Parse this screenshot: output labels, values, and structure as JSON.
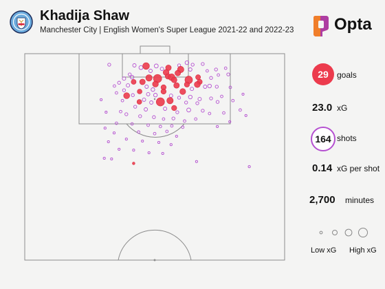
{
  "header": {
    "player_name": "Khadija Shaw",
    "subtitle": "Manchester City | English Women's Super League 2021-22 and 2022-23",
    "logo_text": "Opta",
    "badge_icon": "manchester-city-crest-icon"
  },
  "colors": {
    "goal": "#ec3b4d",
    "shot": "#b44fd0",
    "pitch_line": "#8c8c8c",
    "background": "#f4f4f3"
  },
  "stats": {
    "goals": {
      "value": "29",
      "label": "goals"
    },
    "xg": {
      "value": "23.0",
      "label": "xG"
    },
    "shots": {
      "value": "164",
      "label": "shots"
    },
    "xg_per_shot": {
      "value": "0.14",
      "label": "xG per shot"
    },
    "minutes": {
      "value": "2,700",
      "label": "minutes"
    }
  },
  "legend": {
    "low_label": "Low xG",
    "high_label": "High xG",
    "sizes_xg": [
      0.03,
      0.1,
      0.2,
      0.35
    ]
  },
  "chart_data": {
    "type": "scatter",
    "x_axis": "pitch width (0-100, left to right)",
    "y_axis": "distance from goal line (0-100 half pitch)",
    "xlim": [
      0,
      100
    ],
    "ylim": [
      0,
      100
    ],
    "grid": false,
    "goals": [
      {
        "x": 46.7,
        "y": 5.6,
        "xg": 0.2
      },
      {
        "x": 55.3,
        "y": 6.4,
        "xg": 0.14
      },
      {
        "x": 60.0,
        "y": 7.2,
        "xg": 0.18
      },
      {
        "x": 54.4,
        "y": 8.5,
        "xg": 0.15
      },
      {
        "x": 58.9,
        "y": 8.8,
        "xg": 0.14
      },
      {
        "x": 55.1,
        "y": 10.3,
        "xg": 0.13
      },
      {
        "x": 66.7,
        "y": 10.7,
        "xg": 0.11
      },
      {
        "x": 47.8,
        "y": 11.0,
        "xg": 0.18
      },
      {
        "x": 51.1,
        "y": 11.3,
        "xg": 0.3
      },
      {
        "x": 56.5,
        "y": 10.7,
        "xg": 0.2
      },
      {
        "x": 57.5,
        "y": 11.9,
        "xg": 0.14
      },
      {
        "x": 63.1,
        "y": 11.9,
        "xg": 0.25
      },
      {
        "x": 41.9,
        "y": 12.8,
        "xg": 0.11
      },
      {
        "x": 45.3,
        "y": 12.8,
        "xg": 0.14
      },
      {
        "x": 67.3,
        "y": 12.8,
        "xg": 0.12
      },
      {
        "x": 50.3,
        "y": 13.8,
        "xg": 0.15
      },
      {
        "x": 58.4,
        "y": 14.4,
        "xg": 0.14
      },
      {
        "x": 62.4,
        "y": 14.0,
        "xg": 0.12
      },
      {
        "x": 66.4,
        "y": 14.0,
        "xg": 0.16
      },
      {
        "x": 53.4,
        "y": 15.3,
        "xg": 0.12
      },
      {
        "x": 44.2,
        "y": 17.2,
        "xg": 0.1
      },
      {
        "x": 53.4,
        "y": 17.2,
        "xg": 0.12
      },
      {
        "x": 60.8,
        "y": 17.2,
        "xg": 0.15
      },
      {
        "x": 39.2,
        "y": 19.1,
        "xg": 0.16
      },
      {
        "x": 55.9,
        "y": 21.3,
        "xg": 0.18
      },
      {
        "x": 44.1,
        "y": 21.9,
        "xg": 0.1
      },
      {
        "x": 52.2,
        "y": 21.9,
        "xg": 0.3
      },
      {
        "x": 57.5,
        "y": 24.7,
        "xg": 0.12
      },
      {
        "x": 41.9,
        "y": 49.8,
        "xg": 0.03
      }
    ],
    "shots": [
      {
        "x": 32.5,
        "y": 5.0,
        "xg": 0.04
      },
      {
        "x": 42.2,
        "y": 5.3,
        "xg": 0.05
      },
      {
        "x": 50.6,
        "y": 5.6,
        "xg": 0.07
      },
      {
        "x": 59.4,
        "y": 5.3,
        "xg": 0.04
      },
      {
        "x": 62.4,
        "y": 4.1,
        "xg": 0.06
      },
      {
        "x": 64.6,
        "y": 5.0,
        "xg": 0.04
      },
      {
        "x": 68.5,
        "y": 4.7,
        "xg": 0.04
      },
      {
        "x": 44.7,
        "y": 6.3,
        "xg": 0.07
      },
      {
        "x": 48.4,
        "y": 7.8,
        "xg": 0.05
      },
      {
        "x": 52.8,
        "y": 6.9,
        "xg": 0.05
      },
      {
        "x": 63.7,
        "y": 7.2,
        "xg": 0.05
      },
      {
        "x": 70.2,
        "y": 7.8,
        "xg": 0.03
      },
      {
        "x": 73.6,
        "y": 7.2,
        "xg": 0.04
      },
      {
        "x": 77.3,
        "y": 6.6,
        "xg": 0.03
      },
      {
        "x": 78.3,
        "y": 9.4,
        "xg": 0.04
      },
      {
        "x": 74.5,
        "y": 9.7,
        "xg": 0.03
      },
      {
        "x": 71.7,
        "y": 11.0,
        "xg": 0.04
      },
      {
        "x": 40.4,
        "y": 9.4,
        "xg": 0.04
      },
      {
        "x": 38.2,
        "y": 11.3,
        "xg": 0.05
      },
      {
        "x": 41.3,
        "y": 10.7,
        "xg": 0.06
      },
      {
        "x": 36.3,
        "y": 13.2,
        "xg": 0.04
      },
      {
        "x": 34.5,
        "y": 14.7,
        "xg": 0.03
      },
      {
        "x": 39.7,
        "y": 14.4,
        "xg": 0.05
      },
      {
        "x": 46.9,
        "y": 15.0,
        "xg": 0.05
      },
      {
        "x": 49.3,
        "y": 16.3,
        "xg": 0.06
      },
      {
        "x": 64.3,
        "y": 16.0,
        "xg": 0.05
      },
      {
        "x": 69.4,
        "y": 15.0,
        "xg": 0.05
      },
      {
        "x": 71.1,
        "y": 14.7,
        "xg": 0.06
      },
      {
        "x": 73.9,
        "y": 15.0,
        "xg": 0.04
      },
      {
        "x": 79.1,
        "y": 15.3,
        "xg": 0.03
      },
      {
        "x": 38.2,
        "y": 16.6,
        "xg": 0.04
      },
      {
        "x": 35.3,
        "y": 17.8,
        "xg": 0.03
      },
      {
        "x": 41.6,
        "y": 18.8,
        "xg": 0.04
      },
      {
        "x": 47.5,
        "y": 18.4,
        "xg": 0.05
      },
      {
        "x": 50.3,
        "y": 18.8,
        "xg": 0.06
      },
      {
        "x": 56.3,
        "y": 19.1,
        "xg": 0.05
      },
      {
        "x": 59.4,
        "y": 20.0,
        "xg": 0.04
      },
      {
        "x": 63.7,
        "y": 19.7,
        "xg": 0.06
      },
      {
        "x": 67.3,
        "y": 20.6,
        "xg": 0.05
      },
      {
        "x": 71.7,
        "y": 20.3,
        "xg": 0.04
      },
      {
        "x": 75.8,
        "y": 19.4,
        "xg": 0.03
      },
      {
        "x": 37.6,
        "y": 21.3,
        "xg": 0.03
      },
      {
        "x": 45.9,
        "y": 20.9,
        "xg": 0.05
      },
      {
        "x": 48.7,
        "y": 22.2,
        "xg": 0.05
      },
      {
        "x": 62.1,
        "y": 22.2,
        "xg": 0.04
      },
      {
        "x": 66.4,
        "y": 22.5,
        "xg": 0.04
      },
      {
        "x": 74.2,
        "y": 21.9,
        "xg": 0.04
      },
      {
        "x": 80.1,
        "y": 21.3,
        "xg": 0.03
      },
      {
        "x": 42.5,
        "y": 24.1,
        "xg": 0.04
      },
      {
        "x": 46.6,
        "y": 25.3,
        "xg": 0.05
      },
      {
        "x": 54.0,
        "y": 25.0,
        "xg": 0.05
      },
      {
        "x": 58.7,
        "y": 26.6,
        "xg": 0.04
      },
      {
        "x": 63.1,
        "y": 25.6,
        "xg": 0.07
      },
      {
        "x": 68.5,
        "y": 25.9,
        "xg": 0.04
      },
      {
        "x": 36.9,
        "y": 26.3,
        "xg": 0.03
      },
      {
        "x": 39.1,
        "y": 27.5,
        "xg": 0.04
      },
      {
        "x": 71.1,
        "y": 27.2,
        "xg": 0.03
      },
      {
        "x": 76.6,
        "y": 26.9,
        "xg": 0.03
      },
      {
        "x": 82.9,
        "y": 25.6,
        "xg": 0.03
      },
      {
        "x": 44.4,
        "y": 28.4,
        "xg": 0.04
      },
      {
        "x": 49.7,
        "y": 28.8,
        "xg": 0.04
      },
      {
        "x": 53.4,
        "y": 29.7,
        "xg": 0.03
      },
      {
        "x": 57.2,
        "y": 29.4,
        "xg": 0.04
      },
      {
        "x": 61.5,
        "y": 30.6,
        "xg": 0.03
      },
      {
        "x": 65.8,
        "y": 29.7,
        "xg": 0.03
      },
      {
        "x": 35.3,
        "y": 31.6,
        "xg": 0.03
      },
      {
        "x": 41.3,
        "y": 31.9,
        "xg": 0.03
      },
      {
        "x": 47.5,
        "y": 32.5,
        "xg": 0.03
      },
      {
        "x": 52.2,
        "y": 33.1,
        "xg": 0.03
      },
      {
        "x": 56.6,
        "y": 32.8,
        "xg": 0.03
      },
      {
        "x": 60.8,
        "y": 33.4,
        "xg": 0.03
      },
      {
        "x": 34.4,
        "y": 36.0,
        "xg": 0.02
      },
      {
        "x": 43.8,
        "y": 35.6,
        "xg": 0.03
      },
      {
        "x": 50.0,
        "y": 36.3,
        "xg": 0.03
      },
      {
        "x": 54.7,
        "y": 35.3,
        "xg": 0.03
      },
      {
        "x": 58.4,
        "y": 37.5,
        "xg": 0.02
      },
      {
        "x": 39.1,
        "y": 38.8,
        "xg": 0.02
      },
      {
        "x": 45.3,
        "y": 39.7,
        "xg": 0.02
      },
      {
        "x": 51.6,
        "y": 40.3,
        "xg": 0.02
      },
      {
        "x": 56.3,
        "y": 41.3,
        "xg": 0.02
      },
      {
        "x": 36.3,
        "y": 43.4,
        "xg": 0.02
      },
      {
        "x": 41.9,
        "y": 43.8,
        "xg": 0.02
      },
      {
        "x": 47.8,
        "y": 45.0,
        "xg": 0.02
      },
      {
        "x": 53.1,
        "y": 45.3,
        "xg": 0.02
      },
      {
        "x": 33.4,
        "y": 47.8,
        "xg": 0.02
      },
      {
        "x": 30.6,
        "y": 47.5,
        "xg": 0.02
      },
      {
        "x": 66.1,
        "y": 49.0,
        "xg": 0.02
      },
      {
        "x": 86.4,
        "y": 51.3,
        "xg": 0.02
      },
      {
        "x": 29.4,
        "y": 20.9,
        "xg": 0.02
      },
      {
        "x": 31.3,
        "y": 26.6,
        "xg": 0.02
      },
      {
        "x": 30.9,
        "y": 33.8,
        "xg": 0.02
      },
      {
        "x": 32.2,
        "y": 40.0,
        "xg": 0.02
      },
      {
        "x": 84.0,
        "y": 18.4,
        "xg": 0.02
      },
      {
        "x": 85.1,
        "y": 28.1,
        "xg": 0.02
      },
      {
        "x": 78.9,
        "y": 30.9,
        "xg": 0.02
      },
      {
        "x": 74.1,
        "y": 33.1,
        "xg": 0.02
      }
    ]
  }
}
